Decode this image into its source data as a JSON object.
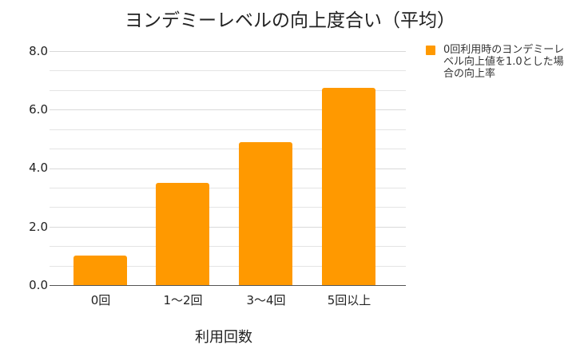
{
  "chart_data": {
    "type": "bar",
    "title": "ヨンデミーレベルの向上度合い（平均）",
    "xlabel": "利用回数",
    "ylabel": "",
    "categories": [
      "0回",
      "1〜2回",
      "3〜4回",
      "5回以上"
    ],
    "series": [
      {
        "name": "0回利用時のヨンデミーレベル向上値を1.0とした場合の向上率",
        "color": "#ff9900",
        "values": [
          1.0,
          3.5,
          4.9,
          6.75
        ]
      }
    ],
    "ylim": [
      0,
      8
    ],
    "yticks": [
      "0.0",
      "2.0",
      "4.0",
      "6.0",
      "8.0"
    ],
    "grid": true,
    "legend_position": "right"
  },
  "legend": {
    "label": "0回利用時のヨンデミーレベル向上値を1.0とした場合の向上率"
  }
}
